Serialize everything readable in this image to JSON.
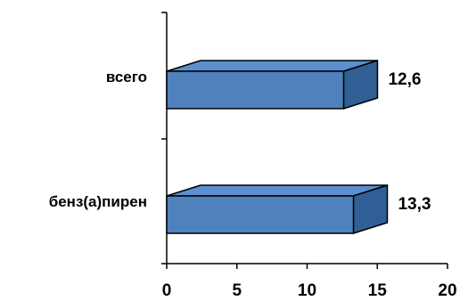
{
  "chart_data": {
    "type": "bar",
    "orientation": "horizontal",
    "style": "3d",
    "categories": [
      "всего",
      "бенз(а)пирен"
    ],
    "values": [
      12.6,
      13.3
    ],
    "value_labels": [
      "12,6",
      "13,3"
    ],
    "xlim": [
      0,
      20
    ],
    "x_ticks": [
      0,
      5,
      10,
      15,
      20
    ],
    "x_tick_labels": [
      "0",
      "5",
      "10",
      "15",
      "20"
    ],
    "grid": false,
    "legend": "none",
    "colors": {
      "bar_front": "#4f81bd",
      "bar_top": "#5b8fd0",
      "bar_side": "#2f5f95",
      "outline": "#000000"
    }
  }
}
